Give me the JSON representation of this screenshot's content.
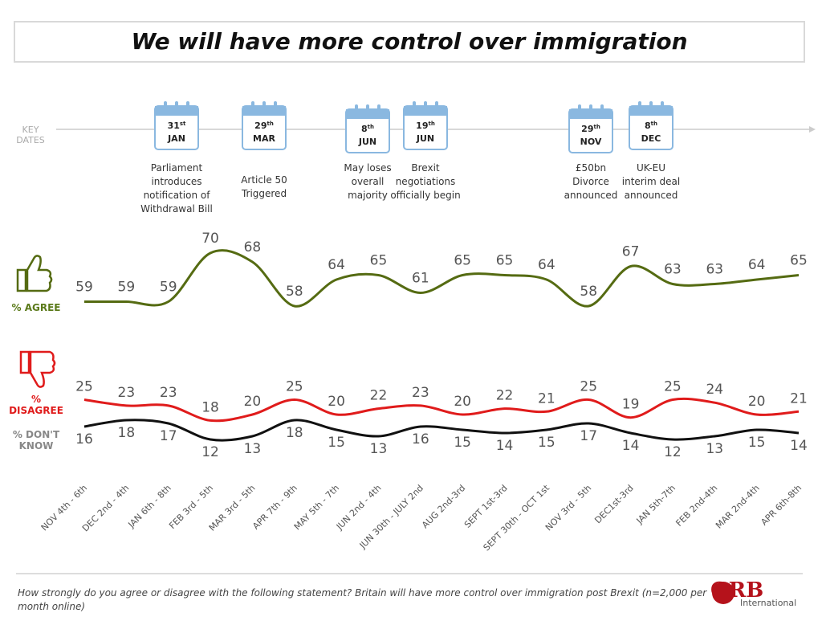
{
  "chart_data": {
    "type": "line",
    "title": "We will have more control over immigration",
    "key_dates_label": "KEY DATES",
    "events": [
      {
        "day": "31",
        "suffix": "st",
        "month": "JAN",
        "text": "Parliament introduces notification of Withdrawal Bill"
      },
      {
        "day": "29",
        "suffix": "th",
        "month": "MAR",
        "text": "Article 50 Triggered"
      },
      {
        "day": "8",
        "suffix": "th",
        "month": "JUN",
        "text": "May loses overall majority"
      },
      {
        "day": "19",
        "suffix": "th",
        "month": "JUN",
        "text": "Brexit negotiations officially begin"
      },
      {
        "day": "29",
        "suffix": "th",
        "month": "NOV",
        "text": "£50bn Divorce announced"
      },
      {
        "day": "8",
        "suffix": "th",
        "month": "DEC",
        "text": "UK-EU interim deal announced"
      }
    ],
    "categories": [
      "NOV 4th - 6th",
      "DEC 2nd - 4th",
      "JAN 6th - 8th",
      "FEB 3rd - 5th",
      "MAR 3rd - 5th",
      "APR 7th - 9th",
      "MAY 5th - 7th",
      "JUN 2nd - 4th",
      "JUN 30th - JULY 2nd",
      "AUG 2nd-3rd",
      "SEPT 1st-3rd",
      "SEPT 30th - OCT 1st",
      "NOV 3rd - 5th",
      "DEC1st-3rd",
      "JAN 5th-7th",
      "FEB 2nd-4th",
      "MAR 2nd-4th",
      "APR 6th-8th"
    ],
    "series": [
      {
        "name": "% AGREE",
        "color": "#556b12",
        "values": [
          59,
          59,
          59,
          70,
          68,
          58,
          64,
          65,
          61,
          65,
          65,
          64,
          58,
          67,
          63,
          63,
          64,
          65
        ]
      },
      {
        "name": "% DISAGREE",
        "color": "#e01b1b",
        "values": [
          25,
          23,
          23,
          18,
          20,
          25,
          20,
          22,
          23,
          20,
          22,
          21,
          25,
          19,
          25,
          24,
          20,
          21
        ]
      },
      {
        "name": "% DON'T KNOW",
        "color": "#111111",
        "values": [
          16,
          18,
          17,
          12,
          13,
          18,
          15,
          13,
          16,
          15,
          14,
          15,
          17,
          14,
          12,
          13,
          15,
          14
        ]
      }
    ],
    "footnote": "How strongly do you agree or disagree with the following statement?  Britain will have more control over immigration post Brexit (n=2,000 per month online)",
    "logo": "ORB",
    "logo_subtitle": "International"
  }
}
